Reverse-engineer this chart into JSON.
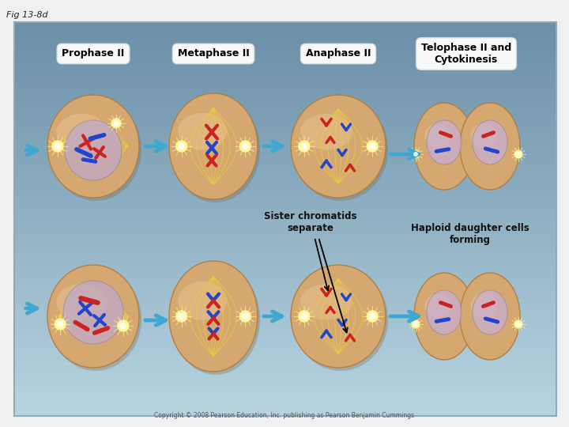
{
  "fig_label": "Fig 13-8d",
  "outer_bg": "#f0f0f0",
  "panel_top_color": "#6a8fa8",
  "panel_bottom_color": "#b8d4e0",
  "title_labels": [
    "Prophase II",
    "Metaphase II",
    "Anaphase II",
    "Telophase II and\nCytokinesis"
  ],
  "annotation1": "Sister chromatids\nseparate",
  "annotation2": "Haploid daughter cells\nforming",
  "copyright": "Copyright © 2008 Pearson Education, Inc. publishing as Pearson Benjamin Cummings",
  "cell_color_top": "#e8c090",
  "cell_color_mid": "#d4a870",
  "cell_color_bot": "#c89860",
  "cell_edge": "#b08040",
  "nucleus_color": "#c0a8c8",
  "nucleus_edge": "#9080a0",
  "arrow_color": "#40a8d0",
  "label_box_color": "#ffffff",
  "label_text_color": "#000000",
  "red_chr": "#cc2222",
  "blue_chr": "#2244cc",
  "spindle_color": "#e8cc44",
  "spindle_bright": "#ffffa0",
  "aster_color": "#ffee88"
}
